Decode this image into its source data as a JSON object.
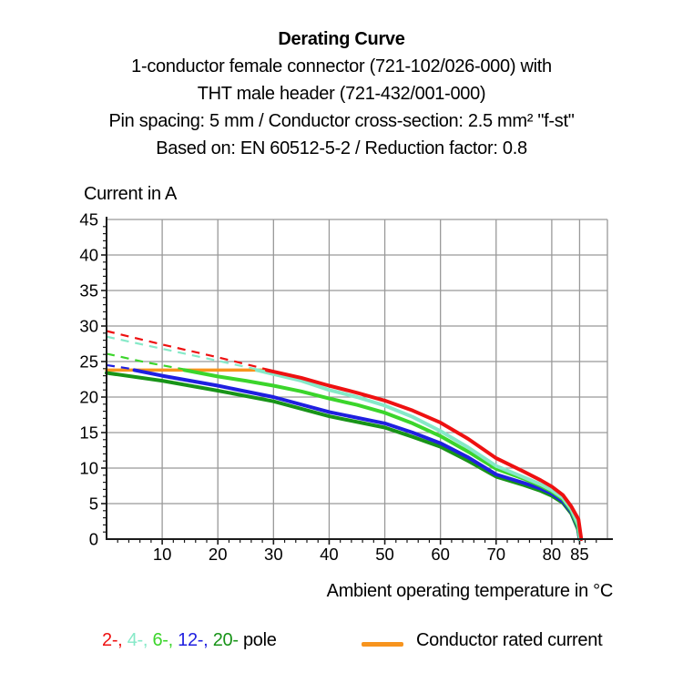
{
  "header": {
    "title": "Derating Curve",
    "subtitle_lines": [
      "1-conductor female connector (721-102/026-000) with",
      "THT male header (721-432/001-000)",
      "Pin spacing: 5 mm / Conductor cross-section: 2.5 mm² \"f-st\"",
      "Based on: EN 60512-5-2 / Reduction factor: 0.8"
    ]
  },
  "chart_data": {
    "type": "line",
    "title": "Derating Curve",
    "xlabel": "Ambient operating temperature in °C",
    "ylabel": "Current in A",
    "xlim": [
      0,
      90
    ],
    "ylim": [
      0,
      45
    ],
    "x_ticks": [
      10,
      20,
      30,
      40,
      50,
      60,
      70,
      80,
      85
    ],
    "y_ticks": [
      0,
      5,
      10,
      15,
      20,
      25,
      30,
      35,
      40,
      45
    ],
    "grid": true,
    "legend_position": "bottom",
    "series": [
      {
        "name": "Conductor rated current",
        "color": "#f7941e",
        "style": "solid",
        "width": 3.5,
        "points": [
          [
            0,
            23.8
          ],
          [
            28.8,
            23.8
          ]
        ]
      },
      {
        "name": "12-pole (no reduction, dashed)",
        "color": "#1f1fe0",
        "style": "dashed",
        "width": 2.2,
        "points": [
          [
            0,
            24.5
          ],
          [
            5,
            23.9
          ]
        ]
      },
      {
        "name": "6-pole (no reduction, dashed)",
        "color": "#3bd52b",
        "style": "dashed",
        "width": 2.2,
        "points": [
          [
            0,
            26.1
          ],
          [
            7,
            24.9
          ],
          [
            14,
            23.9
          ]
        ]
      },
      {
        "name": "4-pole (no reduction, dashed)",
        "color": "#86e9c8",
        "style": "dashed",
        "width": 2.2,
        "points": [
          [
            0,
            28.5
          ],
          [
            10,
            26.8
          ],
          [
            20,
            25.1
          ],
          [
            27,
            23.9
          ]
        ]
      },
      {
        "name": "2-pole (no reduction, dashed)",
        "color": "#ee1111",
        "style": "dashed",
        "width": 2.2,
        "points": [
          [
            0,
            29.3
          ],
          [
            10,
            27.4
          ],
          [
            20,
            25.6
          ],
          [
            28.8,
            23.9
          ]
        ]
      },
      {
        "name": "20-pole",
        "color": "#189418",
        "style": "solid",
        "width": 4,
        "points": [
          [
            0,
            23.4
          ],
          [
            10,
            22.3
          ],
          [
            20,
            20.9
          ],
          [
            30,
            19.4
          ],
          [
            40,
            17.3
          ],
          [
            50,
            15.7
          ],
          [
            55,
            14.4
          ],
          [
            60,
            13.0
          ],
          [
            65,
            11.0
          ],
          [
            70,
            8.8
          ],
          [
            75,
            7.6
          ],
          [
            78,
            6.8
          ],
          [
            80,
            6.1
          ],
          [
            82,
            5.1
          ],
          [
            83.5,
            3.6
          ],
          [
            84.7,
            1.4
          ],
          [
            85,
            0
          ]
        ]
      },
      {
        "name": "12-pole",
        "color": "#1f1fe0",
        "style": "solid",
        "width": 4,
        "points": [
          [
            5,
            23.8
          ],
          [
            10,
            23.0
          ],
          [
            20,
            21.6
          ],
          [
            30,
            20.0
          ],
          [
            40,
            17.9
          ],
          [
            50,
            16.3
          ],
          [
            55,
            15.0
          ],
          [
            60,
            13.5
          ],
          [
            65,
            11.5
          ],
          [
            70,
            9.1
          ],
          [
            75,
            7.9
          ],
          [
            78,
            7.1
          ],
          [
            80,
            6.4
          ],
          [
            82,
            5.3
          ],
          [
            83.5,
            3.8
          ],
          [
            84.7,
            1.6
          ],
          [
            85,
            0
          ]
        ]
      },
      {
        "name": "6-pole",
        "color": "#3bd52b",
        "style": "solid",
        "width": 4,
        "points": [
          [
            14,
            23.8
          ],
          [
            20,
            22.9
          ],
          [
            25,
            22.3
          ],
          [
            30,
            21.6
          ],
          [
            35,
            20.8
          ],
          [
            40,
            19.8
          ],
          [
            45,
            18.9
          ],
          [
            50,
            17.8
          ],
          [
            55,
            16.3
          ],
          [
            60,
            14.5
          ],
          [
            65,
            12.3
          ],
          [
            70,
            9.9
          ],
          [
            75,
            8.5
          ],
          [
            78,
            7.5
          ],
          [
            80,
            6.7
          ],
          [
            82,
            5.6
          ],
          [
            83.5,
            4.0
          ],
          [
            84.7,
            1.8
          ],
          [
            85.05,
            0
          ]
        ]
      },
      {
        "name": "4-pole",
        "color": "#86e9c8",
        "style": "solid",
        "width": 4,
        "points": [
          [
            27,
            23.8
          ],
          [
            35,
            22.3
          ],
          [
            40,
            21.0
          ],
          [
            45,
            20.0
          ],
          [
            50,
            18.8
          ],
          [
            55,
            17.2
          ],
          [
            60,
            15.2
          ],
          [
            65,
            12.9
          ],
          [
            70,
            10.3
          ],
          [
            75,
            8.7
          ],
          [
            78,
            7.7
          ],
          [
            80,
            6.9
          ],
          [
            82,
            5.8
          ],
          [
            83.5,
            4.2
          ],
          [
            84.8,
            2.0
          ],
          [
            85.1,
            0
          ]
        ]
      },
      {
        "name": "2-pole",
        "color": "#ee1111",
        "style": "solid",
        "width": 4,
        "points": [
          [
            28.8,
            23.8
          ],
          [
            35,
            22.7
          ],
          [
            40,
            21.6
          ],
          [
            45,
            20.6
          ],
          [
            50,
            19.5
          ],
          [
            55,
            18.1
          ],
          [
            60,
            16.4
          ],
          [
            65,
            14.1
          ],
          [
            70,
            11.4
          ],
          [
            75,
            9.5
          ],
          [
            78,
            8.3
          ],
          [
            80,
            7.4
          ],
          [
            82,
            6.2
          ],
          [
            83.5,
            4.6
          ],
          [
            84.8,
            2.8
          ],
          [
            85.3,
            0
          ]
        ]
      }
    ]
  },
  "legend": {
    "pole_items": [
      {
        "label": "2-,",
        "color": "#ee1111"
      },
      {
        "label": "4-,",
        "color": "#86e9c8"
      },
      {
        "label": "6-,",
        "color": "#3bd52b"
      },
      {
        "label": "12-,",
        "color": "#1f1fe0"
      },
      {
        "label": "20-",
        "color": "#189418"
      }
    ],
    "pole_suffix": "pole",
    "rated": {
      "label": "Conductor rated current",
      "color": "#f7941e"
    }
  },
  "colors": {
    "grid": "#999999",
    "axis": "#1a1a1a",
    "text": "#000000"
  }
}
